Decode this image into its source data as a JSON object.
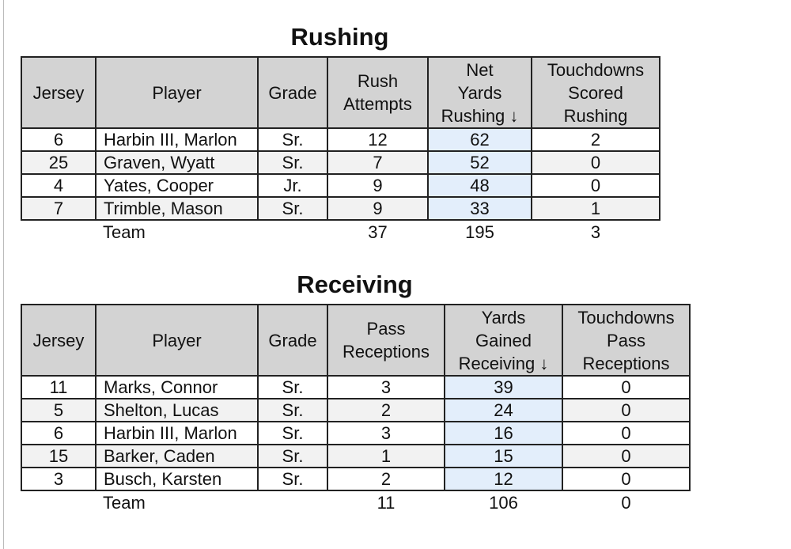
{
  "sections": [
    {
      "title": "Rushing",
      "columns": [
        "Jersey",
        "Player",
        "Grade",
        "Rush\nAttempts",
        "Net\nYards\nRushing ↓",
        "Touchdowns\nScored\nRushing"
      ],
      "rows": [
        [
          6,
          "Harbin III, Marlon",
          "Sr.",
          12,
          62,
          2
        ],
        [
          25,
          "Graven, Wyatt",
          "Sr.",
          7,
          52,
          0
        ],
        [
          4,
          "Yates, Cooper",
          "Jr.",
          9,
          48,
          0
        ],
        [
          7,
          "Trimble, Mason",
          "Sr.",
          9,
          33,
          1
        ]
      ],
      "team": {
        "label": "Team",
        "values": [
          37,
          195,
          3
        ]
      }
    },
    {
      "title": "Receiving",
      "columns": [
        "Jersey",
        "Player",
        "Grade",
        "Pass\nReceptions",
        "Yards\nGained\nReceiving ↓",
        "Touchdowns\nPass\nReceptions"
      ],
      "rows": [
        [
          11,
          "Marks, Connor",
          "Sr.",
          3,
          39,
          0
        ],
        [
          5,
          "Shelton, Lucas",
          "Sr.",
          2,
          24,
          0
        ],
        [
          6,
          "Harbin III, Marlon",
          "Sr.",
          3,
          16,
          0
        ],
        [
          15,
          "Barker, Caden",
          "Sr.",
          1,
          15,
          0
        ],
        [
          3,
          "Busch, Karsten",
          "Sr.",
          2,
          12,
          0
        ]
      ],
      "team": {
        "label": "Team",
        "values": [
          11,
          106,
          0
        ]
      }
    }
  ]
}
